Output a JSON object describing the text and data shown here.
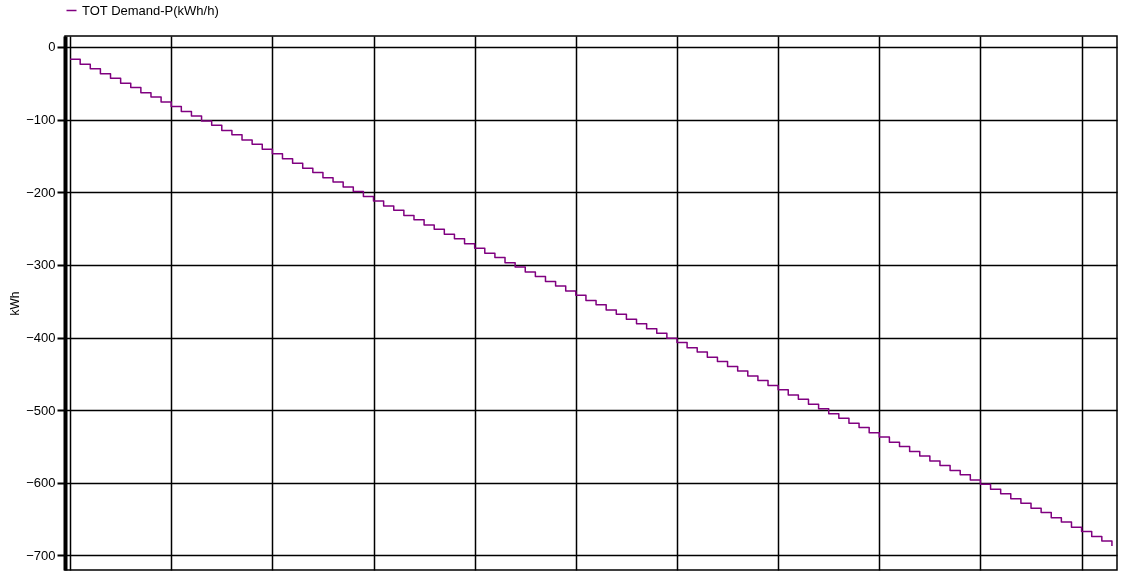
{
  "chart_data": {
    "type": "step",
    "ylabel": "kWh",
    "categories": [
      null,
      null,
      null,
      null,
      null,
      null,
      null,
      null,
      null,
      null,
      null,
      null,
      null,
      null,
      null,
      null,
      null,
      null,
      null,
      null,
      null,
      null,
      null,
      null,
      null,
      null,
      null,
      null,
      null,
      null,
      null,
      null,
      null,
      null,
      null,
      null,
      null,
      null,
      null,
      null,
      null,
      null,
      null,
      null,
      null,
      null,
      null,
      null,
      null,
      null,
      null,
      null,
      null,
      null,
      null,
      null,
      null,
      null,
      null,
      null,
      null,
      null,
      null,
      null,
      null,
      null,
      null,
      null,
      null,
      null,
      null,
      null,
      null,
      null,
      null,
      null,
      null,
      null,
      null,
      null,
      null,
      null,
      null,
      null,
      null,
      null,
      null,
      null,
      null,
      null,
      null,
      null,
      null,
      null,
      null,
      null,
      null,
      null,
      null,
      null,
      null,
      null,
      null,
      null
    ],
    "series": [
      {
        "name": "TOT Demand-P(kWh/h)",
        "color": "#800080",
        "values": [
          -17,
          -24,
          -30,
          -37,
          -43,
          -50,
          -56,
          -63,
          -69,
          -76,
          -82,
          -89,
          -95,
          -102,
          -108,
          -115,
          -121,
          -128,
          -134,
          -141,
          -147,
          -154,
          -160,
          -167,
          -173,
          -180,
          -186,
          -193,
          -199,
          -206,
          -212,
          -219,
          -225,
          -232,
          -238,
          -245,
          -251,
          -258,
          -264,
          -271,
          -277,
          -284,
          -290,
          -297,
          -303,
          -310,
          -316,
          -323,
          -329,
          -336,
          -342,
          -349,
          -355,
          -362,
          -368,
          -375,
          -381,
          -388,
          -394,
          -401,
          -407,
          -414,
          -420,
          -427,
          -433,
          -440,
          -446,
          -453,
          -459,
          -466,
          -472,
          -479,
          -485,
          -492,
          -498,
          -505,
          -511,
          -518,
          -524,
          -531,
          -537,
          -544,
          -550,
          -557,
          -563,
          -570,
          -576,
          -583,
          -589,
          -596,
          -602,
          -609,
          -615,
          -622,
          -628,
          -635,
          -641,
          -648,
          -654,
          -661,
          -667,
          -674,
          -680,
          -687
        ]
      }
    ],
    "ylim": [
      -720,
      15
    ],
    "yticks": [
      0,
      -100,
      -200,
      -300,
      -400,
      -500,
      -600,
      -700
    ],
    "grid": true,
    "legend": "top",
    "tick_labels": "y"
  }
}
